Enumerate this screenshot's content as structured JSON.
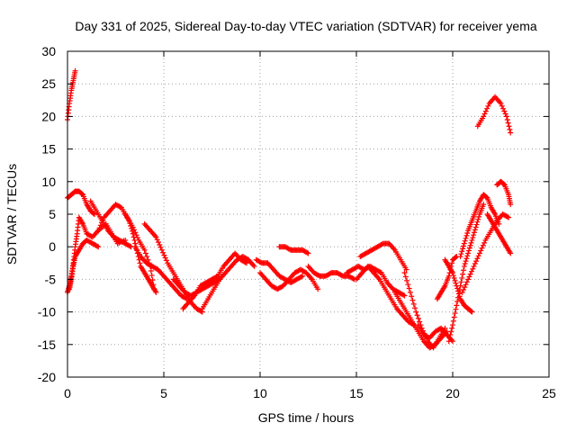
{
  "chart_data": {
    "type": "scatter",
    "title": "Day 331 of 2025, Sidereal Day-to-day VTEC variation (SDTVAR) for receiver yema",
    "xlabel": "GPS time / hours",
    "ylabel": "SDTVAR / TECUs",
    "xlim": [
      0,
      25
    ],
    "ylim": [
      -20,
      30
    ],
    "xticks": [
      0,
      5,
      10,
      15,
      20,
      25
    ],
    "yticks": [
      -20,
      -15,
      -10,
      -5,
      0,
      5,
      10,
      15,
      20,
      25,
      30
    ],
    "grid": true,
    "marker": "plus",
    "color": "#ff0000",
    "series": [
      {
        "name": "arc-01",
        "x": [
          0.0,
          0.1,
          0.2,
          0.3,
          0.4
        ],
        "y": [
          19.5,
          22.0,
          24.0,
          25.5,
          27.0
        ]
      },
      {
        "name": "arc-02",
        "x": [
          0.0,
          0.2,
          0.4,
          0.6,
          0.8,
          1.0,
          1.2,
          1.4
        ],
        "y": [
          7.5,
          8.0,
          8.5,
          8.5,
          8.0,
          6.5,
          5.5,
          5.0
        ]
      },
      {
        "name": "arc-03",
        "x": [
          0.0,
          0.1,
          0.2,
          0.3,
          0.4,
          0.5,
          0.6,
          0.8,
          1.0,
          1.3,
          1.6,
          2.0,
          2.3,
          2.6,
          3.0
        ],
        "y": [
          -7.0,
          -6.0,
          -4.5,
          -2.5,
          0.0,
          2.0,
          4.5,
          3.5,
          2.0,
          1.5,
          2.5,
          3.5,
          2.0,
          0.5,
          1.0
        ]
      },
      {
        "name": "arc-04",
        "x": [
          0.1,
          0.2,
          0.3,
          0.4,
          0.6,
          0.8,
          1.0,
          1.3,
          1.6
        ],
        "y": [
          -6.5,
          -5.0,
          -3.0,
          -1.5,
          -0.5,
          0.5,
          1.0,
          0.5,
          0.0
        ]
      },
      {
        "name": "arc-05",
        "x": [
          1.2,
          1.5,
          1.8,
          2.1,
          2.4,
          2.7,
          3.0,
          3.3
        ],
        "y": [
          7.0,
          5.5,
          4.0,
          2.5,
          1.5,
          1.0,
          0.5,
          0.0
        ]
      },
      {
        "name": "arc-06",
        "x": [
          1.6,
          1.9,
          2.2,
          2.5,
          2.8,
          3.1,
          3.4,
          3.7,
          4.0,
          4.3,
          4.5
        ],
        "y": [
          2.5,
          4.5,
          5.5,
          6.5,
          6.0,
          4.5,
          3.0,
          1.0,
          -0.5,
          -3.0,
          -6.5
        ]
      },
      {
        "name": "arc-07",
        "x": [
          3.0,
          3.2,
          3.4,
          3.6,
          3.8,
          4.0,
          4.2,
          4.4,
          4.6
        ],
        "y": [
          5.0,
          4.0,
          2.0,
          -0.5,
          -3.0,
          -4.0,
          -5.0,
          -6.0,
          -7.0
        ]
      },
      {
        "name": "arc-08",
        "x": [
          4.0,
          4.3,
          4.6,
          4.9,
          5.2,
          5.5,
          5.8,
          6.1,
          6.4,
          6.7,
          7.0
        ],
        "y": [
          3.5,
          2.5,
          1.5,
          -0.5,
          -2.5,
          -4.0,
          -5.5,
          -7.0,
          -8.5,
          -9.5,
          -10.0
        ]
      },
      {
        "name": "arc-09",
        "x": [
          3.5,
          3.8,
          4.1,
          4.4,
          4.7,
          5.0,
          5.3,
          5.6,
          5.9,
          6.2
        ],
        "y": [
          0.0,
          -1.5,
          -2.5,
          -3.0,
          -3.5,
          -4.5,
          -5.5,
          -6.5,
          -7.5,
          -8.0
        ]
      },
      {
        "name": "arc-10",
        "x": [
          5.5,
          5.8,
          6.1,
          6.4,
          6.7,
          7.0,
          7.3,
          7.6,
          7.9
        ],
        "y": [
          -5.0,
          -6.0,
          -7.0,
          -7.5,
          -7.0,
          -6.5,
          -6.0,
          -5.5,
          -5.0
        ]
      },
      {
        "name": "arc-11",
        "x": [
          6.0,
          6.3,
          6.6,
          6.9,
          7.2,
          7.5,
          7.8,
          8.1,
          8.4,
          8.7,
          9.0,
          9.3
        ],
        "y": [
          -9.5,
          -8.5,
          -7.5,
          -6.0,
          -5.5,
          -5.0,
          -4.5,
          -3.0,
          -2.0,
          -1.0,
          -2.0,
          -2.5
        ]
      },
      {
        "name": "arc-12",
        "x": [
          7.0,
          7.3,
          7.6,
          7.9,
          8.2,
          8.5,
          8.8,
          9.1,
          9.4,
          9.7
        ],
        "y": [
          -9.5,
          -8.0,
          -6.5,
          -5.0,
          -4.0,
          -3.0,
          -2.0,
          -1.5,
          -2.0,
          -3.0
        ]
      },
      {
        "name": "arc-13",
        "x": [
          9.8,
          10.1,
          10.4,
          10.7,
          11.0,
          11.3,
          11.6,
          11.9,
          12.2
        ],
        "y": [
          -2.0,
          -2.5,
          -2.5,
          -3.5,
          -4.5,
          -5.0,
          -5.5,
          -5.0,
          -4.5
        ]
      },
      {
        "name": "arc-14",
        "x": [
          10.0,
          10.3,
          10.6,
          10.9,
          11.2,
          11.5,
          11.8,
          12.1,
          12.4,
          12.7,
          13.0
        ],
        "y": [
          -4.0,
          -5.0,
          -6.0,
          -6.5,
          -6.0,
          -5.0,
          -4.0,
          -3.5,
          -4.0,
          -5.0,
          -6.5
        ]
      },
      {
        "name": "arc-15",
        "x": [
          11.0,
          11.3,
          11.6,
          11.9,
          12.2,
          12.5
        ],
        "y": [
          0.0,
          0.0,
          -0.5,
          -0.5,
          -0.5,
          -1.0
        ]
      },
      {
        "name": "arc-16",
        "x": [
          12.5,
          12.8,
          13.1,
          13.4,
          13.7,
          14.0,
          14.3,
          14.6,
          14.9
        ],
        "y": [
          -3.0,
          -4.0,
          -4.5,
          -4.5,
          -4.0,
          -4.0,
          -4.5,
          -4.5,
          -5.0
        ]
      },
      {
        "name": "arc-17",
        "x": [
          14.5,
          14.8,
          15.1,
          15.4,
          15.7,
          16.0,
          16.3,
          16.6,
          16.9,
          17.2,
          17.5
        ],
        "y": [
          -4.0,
          -3.5,
          -3.0,
          -3.5,
          -3.0,
          -3.5,
          -4.0,
          -5.5,
          -6.5,
          -7.0,
          -7.5
        ]
      },
      {
        "name": "arc-18",
        "x": [
          15.0,
          15.3,
          15.6,
          15.9,
          16.2,
          16.5,
          16.8,
          17.1,
          17.4,
          17.7,
          18.0
        ],
        "y": [
          -5.0,
          -4.0,
          -3.0,
          -4.0,
          -5.0,
          -6.5,
          -8.0,
          -9.5,
          -10.5,
          -11.5,
          -12.0
        ]
      },
      {
        "name": "arc-19",
        "x": [
          15.2,
          15.5,
          15.8,
          16.1,
          16.4,
          16.7,
          17.0,
          17.3,
          17.6
        ],
        "y": [
          -1.5,
          -1.0,
          -0.5,
          0.0,
          0.5,
          0.5,
          -0.5,
          -2.0,
          -3.5
        ]
      },
      {
        "name": "arc-20",
        "x": [
          17.0,
          17.3,
          17.6,
          17.9,
          18.2,
          18.5,
          18.8,
          19.1,
          19.4,
          19.7
        ],
        "y": [
          -7.0,
          -8.5,
          -10.0,
          -11.5,
          -13.0,
          -14.5,
          -15.5,
          -15.0,
          -14.0,
          -13.0
        ]
      },
      {
        "name": "arc-21",
        "x": [
          17.5,
          17.8,
          18.1,
          18.4,
          18.7,
          19.0,
          19.3,
          19.6
        ],
        "y": [
          -4.0,
          -7.0,
          -10.0,
          -12.5,
          -14.5,
          -15.5,
          -14.0,
          -12.5
        ]
      },
      {
        "name": "arc-22",
        "x": [
          18.2,
          18.5,
          18.8,
          19.1,
          19.4,
          19.7,
          20.0
        ],
        "y": [
          -12.0,
          -13.5,
          -14.0,
          -13.0,
          -12.5,
          -13.5,
          -14.5
        ]
      },
      {
        "name": "arc-23",
        "x": [
          19.2,
          19.4,
          19.6,
          19.8,
          20.0,
          20.2
        ],
        "y": [
          -8.0,
          -7.0,
          -6.0,
          -4.5,
          -2.0,
          -1.5
        ]
      },
      {
        "name": "arc-24",
        "x": [
          19.8,
          20.0,
          20.2,
          20.4,
          20.6,
          20.8,
          21.0,
          21.2,
          21.4,
          21.6
        ],
        "y": [
          -14.5,
          -12.0,
          -9.0,
          -6.0,
          -3.0,
          -1.0,
          1.0,
          3.0,
          5.0,
          6.5
        ]
      },
      {
        "name": "arc-25",
        "x": [
          19.6,
          19.8,
          20.0,
          20.2,
          20.4,
          20.6,
          20.8,
          21.0
        ],
        "y": [
          -2.0,
          -3.0,
          -4.0,
          -6.0,
          -8.0,
          -9.0,
          -9.5,
          -10.0
        ]
      },
      {
        "name": "arc-26",
        "x": [
          20.4,
          20.6,
          20.8,
          21.0,
          21.2,
          21.4,
          21.6,
          21.8,
          22.0,
          22.2,
          22.4
        ],
        "y": [
          -1.5,
          0.5,
          2.5,
          4.0,
          5.5,
          7.0,
          8.0,
          7.5,
          6.0,
          5.0,
          3.5
        ]
      },
      {
        "name": "arc-27",
        "x": [
          20.5,
          20.8,
          21.1,
          21.4,
          21.7,
          22.0,
          22.3,
          22.6,
          22.9
        ],
        "y": [
          -7.0,
          -5.0,
          -3.0,
          -1.0,
          1.0,
          2.5,
          4.0,
          5.0,
          4.5
        ]
      },
      {
        "name": "arc-28",
        "x": [
          21.8,
          22.0,
          22.2,
          22.4,
          22.6,
          22.8,
          23.0
        ],
        "y": [
          5.0,
          4.0,
          3.0,
          2.0,
          1.0,
          0.0,
          -1.0
        ]
      },
      {
        "name": "arc-29",
        "x": [
          22.3,
          22.5,
          22.7,
          22.9,
          23.0
        ],
        "y": [
          9.5,
          10.0,
          9.5,
          8.0,
          6.5
        ]
      },
      {
        "name": "arc-30",
        "x": [
          21.3,
          21.6,
          21.9,
          22.2,
          22.5,
          22.8,
          23.0
        ],
        "y": [
          18.5,
          20.0,
          22.0,
          23.0,
          22.0,
          20.0,
          17.5
        ]
      }
    ]
  }
}
